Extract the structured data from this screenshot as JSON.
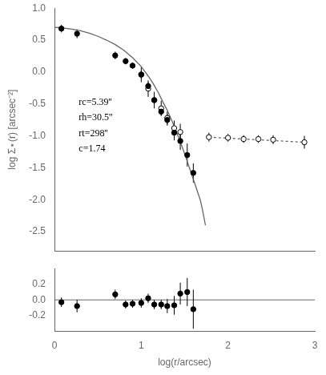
{
  "chart_data": [
    {
      "type": "line",
      "ylabel": "log Σ⋆(r) [arcsec⁻²]",
      "xlim": [
        0,
        3
      ],
      "xticks": [
        0,
        1,
        2,
        3
      ],
      "ylim": [
        -2.8,
        1.0
      ],
      "yticks": [
        -2.5,
        {
          "value": -2.0,
          "label": "-2.0"
        },
        -1.5,
        {
          "value": -1.0,
          "label": "-1.0"
        },
        -0.5,
        {
          "value": 0,
          "label": "0.0"
        },
        0.5,
        {
          "value": 1.0,
          "label": "1.0"
        }
      ],
      "grid": false,
      "tick_labels": "y",
      "annotations": [
        {
          "text": "rc=5.39''",
          "x": 0.28,
          "y": -0.52
        },
        {
          "text": "rh=30.5''",
          "x": 0.28,
          "y": -0.76
        },
        {
          "text": "rt=298''",
          "x": 0.28,
          "y": -1.0
        },
        {
          "text": "c=1.74",
          "x": 0.28,
          "y": -1.24
        }
      ],
      "series": [
        {
          "type": "line",
          "color": "#666666",
          "line_style": "solid",
          "x": [
            0.0,
            0.05,
            0.1,
            0.15,
            0.2,
            0.25,
            0.3,
            0.35,
            0.4,
            0.5,
            0.6,
            0.7,
            0.8,
            0.9,
            1.0,
            1.1,
            1.15,
            1.2,
            1.25,
            1.3,
            1.35,
            1.4,
            1.45,
            1.5,
            1.55,
            1.6,
            1.63,
            1.65,
            1.68,
            1.7,
            1.72,
            1.74
          ],
          "values": [
            0.7,
            0.695,
            0.69,
            0.682,
            0.672,
            0.66,
            0.645,
            0.628,
            0.608,
            0.56,
            0.5,
            0.43,
            0.34,
            0.225,
            0.085,
            -0.1,
            -0.21,
            -0.33,
            -0.47,
            -0.6,
            -0.75,
            -0.92,
            -1.09,
            -1.28,
            -1.48,
            -1.68,
            -1.8,
            -1.88,
            -2.0,
            -2.12,
            -2.26,
            -2.4
          ]
        },
        {
          "type": "line",
          "color": "#666666",
          "line_style": "dotted",
          "x": [
            1.78,
            2.88
          ],
          "values": [
            -1.02,
            -1.1
          ]
        },
        {
          "type": "scatter",
          "color": "#000000",
          "marker": "filled_circle",
          "x": [
            0.08,
            0.26,
            0.7,
            0.82,
            0.9,
            1.0,
            1.08,
            1.15,
            1.23,
            1.3,
            1.38,
            1.45,
            1.53,
            1.6
          ],
          "values": [
            0.68,
            0.6,
            0.26,
            0.17,
            0.1,
            -0.04,
            -0.22,
            -0.44,
            -0.62,
            -0.75,
            -0.95,
            -1.08,
            -1.3,
            -1.58
          ],
          "yerr": [
            0.06,
            0.07,
            0.06,
            0.05,
            0.05,
            0.06,
            0.06,
            0.06,
            0.06,
            0.09,
            0.12,
            0.14,
            0.18,
            0.15
          ]
        },
        {
          "type": "scatter",
          "color": "#000000",
          "marker": "open_circle",
          "x": [
            1.0,
            1.08,
            1.15,
            1.23,
            1.3,
            1.38,
            1.45,
            1.78,
            2.0,
            2.18,
            2.35,
            2.52,
            2.88
          ],
          "values": [
            -0.04,
            -0.26,
            -0.44,
            -0.57,
            -0.72,
            -0.88,
            -0.94,
            -1.02,
            -1.03,
            -1.05,
            -1.05,
            -1.06,
            -1.1
          ],
          "yerr": [
            0.12,
            0.13,
            0.13,
            0.12,
            0.1,
            0.12,
            0.13,
            0.07,
            0.06,
            0.06,
            0.06,
            0.07,
            0.1
          ]
        }
      ]
    },
    {
      "type": "scatter",
      "xlabel": "log(r/arcsec)",
      "xlim": [
        0,
        3
      ],
      "xticks": [
        0,
        1,
        2,
        3
      ],
      "ylim": [
        -0.4,
        0.4
      ],
      "yticks": [
        -0.2,
        {
          "value": 0,
          "label": "0.0"
        },
        0.2
      ],
      "grid": false,
      "series": [
        {
          "type": "hline",
          "color": "#666666",
          "y": 0
        },
        {
          "type": "scatter",
          "color": "#000000",
          "marker": "filled_circle",
          "x": [
            0.08,
            0.26,
            0.7,
            0.82,
            0.9,
            1.0,
            1.08,
            1.15,
            1.23,
            1.3,
            1.38,
            1.45,
            1.53,
            1.6
          ],
          "values": [
            -0.03,
            -0.08,
            0.07,
            -0.06,
            -0.05,
            -0.04,
            0.02,
            -0.06,
            -0.06,
            -0.08,
            -0.07,
            0.08,
            0.1,
            -0.12
          ],
          "yerr": [
            0.06,
            0.08,
            0.06,
            0.05,
            0.05,
            0.06,
            0.06,
            0.06,
            0.06,
            0.09,
            0.12,
            0.14,
            0.18,
            0.25
          ]
        }
      ]
    }
  ]
}
